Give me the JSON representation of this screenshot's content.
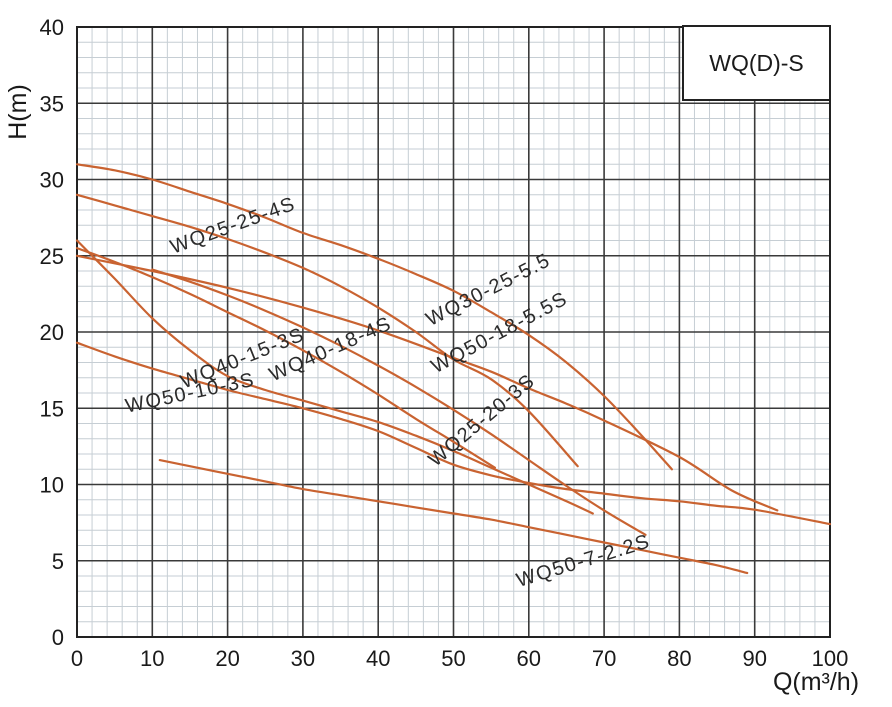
{
  "chart_data": {
    "type": "line",
    "legend_label": "WQ(D)-S",
    "xlabel": "Q(m³/h)",
    "ylabel": "H(m)",
    "xlim": [
      0,
      100
    ],
    "ylim": [
      0,
      40
    ],
    "x_ticks": [
      0,
      10,
      20,
      30,
      40,
      50,
      60,
      70,
      80,
      90,
      100
    ],
    "y_ticks": [
      0,
      5,
      10,
      15,
      20,
      25,
      30,
      35,
      40
    ],
    "x_minor_step": 2,
    "y_minor_step": 1,
    "grid": true,
    "legend_position": "top-right",
    "colors": {
      "curve": "#c96331",
      "grid_major": "#3a3a3a",
      "grid_minor": "#c6ced4",
      "border": "#222222",
      "text": "#1a1a1a"
    },
    "series": [
      {
        "name": "WQ30-25-5.5",
        "points": [
          [
            0,
            31
          ],
          [
            5,
            30.6
          ],
          [
            10,
            30
          ],
          [
            15,
            29.2
          ],
          [
            20,
            28.4
          ],
          [
            25,
            27.5
          ],
          [
            30,
            26.5
          ],
          [
            35,
            25.7
          ],
          [
            40,
            24.8
          ],
          [
            45,
            23.8
          ],
          [
            50,
            22.7
          ],
          [
            55,
            21.3
          ],
          [
            60,
            19.8
          ],
          [
            65,
            18
          ],
          [
            70,
            15.8
          ],
          [
            75,
            13.2
          ],
          [
            79,
            11
          ]
        ],
        "label_q": 55,
        "label_h": 22.4,
        "label_angle": -27
      },
      {
        "name": "WQ25-25-4S",
        "points": [
          [
            0,
            29
          ],
          [
            5,
            28.3
          ],
          [
            10,
            27.6
          ],
          [
            15,
            26.9
          ],
          [
            20,
            26.1
          ],
          [
            25,
            25.2
          ],
          [
            30,
            24.2
          ],
          [
            35,
            23
          ],
          [
            40,
            21.6
          ],
          [
            45,
            20
          ],
          [
            50,
            18.2
          ],
          [
            55,
            16.9
          ],
          [
            60,
            14.8
          ],
          [
            66.5,
            11.2
          ]
        ],
        "label_q": 21,
        "label_h": 26.6,
        "label_angle": -20
      },
      {
        "name": "WQ50-18-5.5S",
        "points": [
          [
            0,
            25
          ],
          [
            10,
            24
          ],
          [
            20,
            22.9
          ],
          [
            30,
            21.6
          ],
          [
            40,
            20.1
          ],
          [
            50,
            18.3
          ],
          [
            55,
            17.4
          ],
          [
            60,
            16.3
          ],
          [
            65,
            15.3
          ],
          [
            70,
            14.2
          ],
          [
            80,
            11.8
          ],
          [
            87,
            9.6
          ],
          [
            93,
            8.3
          ]
        ],
        "label_q": 56.5,
        "label_h": 19.6,
        "label_angle": -28
      },
      {
        "name": "WQ40-18-4S",
        "points": [
          [
            10,
            24.1
          ],
          [
            15,
            23.3
          ],
          [
            20,
            22.4
          ],
          [
            25,
            21.4
          ],
          [
            30,
            20.3
          ],
          [
            35,
            19.1
          ],
          [
            40,
            17.8
          ],
          [
            45,
            16.4
          ],
          [
            50,
            14.9
          ],
          [
            55,
            13.3
          ],
          [
            60,
            11.6
          ],
          [
            65,
            9.9
          ],
          [
            70,
            8.3
          ],
          [
            75.5,
            6.7
          ]
        ],
        "label_q": 34,
        "label_h": 18.5,
        "label_angle": -24
      },
      {
        "name": "WQ25-20-3S",
        "points": [
          [
            0,
            25.5
          ],
          [
            5,
            24.6
          ],
          [
            10,
            23.6
          ],
          [
            15,
            22.5
          ],
          [
            20,
            21.3
          ],
          [
            25,
            20.1
          ],
          [
            30,
            18.8
          ],
          [
            35,
            17.4
          ],
          [
            40,
            15.9
          ],
          [
            45,
            14.3
          ],
          [
            50,
            12.8
          ],
          [
            55.5,
            11.1
          ]
        ],
        "label_q": 54.3,
        "label_h": 13.9,
        "label_angle": -40
      },
      {
        "name": "WQ40-15-3S",
        "points": [
          [
            0,
            26
          ],
          [
            5,
            23.5
          ],
          [
            10,
            20.9
          ],
          [
            15,
            18.8
          ],
          [
            20,
            17.1
          ],
          [
            25,
            16.2
          ],
          [
            30,
            15.5
          ],
          [
            35,
            14.8
          ],
          [
            40,
            14.1
          ],
          [
            45,
            13.2
          ],
          [
            50,
            12.2
          ],
          [
            55,
            11.1
          ],
          [
            60,
            10
          ],
          [
            65,
            8.9
          ],
          [
            68.5,
            8.1
          ]
        ],
        "label_q": 22.3,
        "label_h": 17.9,
        "label_angle": -22
      },
      {
        "name": "WQ50-10-3S",
        "points": [
          [
            0,
            19.3
          ],
          [
            5,
            18.4
          ],
          [
            10,
            17.6
          ],
          [
            15,
            16.9
          ],
          [
            20,
            16.2
          ],
          [
            25,
            15.6
          ],
          [
            30,
            15
          ],
          [
            35,
            14.3
          ],
          [
            40,
            13.5
          ],
          [
            45,
            12.4
          ],
          [
            50,
            11.3
          ],
          [
            55,
            10.6
          ],
          [
            60,
            10.1
          ],
          [
            65,
            9.7
          ],
          [
            70,
            9.4
          ],
          [
            75,
            9.1
          ],
          [
            80,
            8.9
          ],
          [
            85,
            8.6
          ],
          [
            90,
            8.35
          ],
          [
            100,
            7.4
          ]
        ],
        "label_q": 15.2,
        "label_h": 15.6,
        "label_angle": -12
      },
      {
        "name": "WQ50-7-2.2S",
        "points": [
          [
            11,
            11.6
          ],
          [
            15,
            11.2
          ],
          [
            20,
            10.7
          ],
          [
            25,
            10.2
          ],
          [
            30,
            9.7
          ],
          [
            35,
            9.3
          ],
          [
            40,
            8.9
          ],
          [
            45,
            8.5
          ],
          [
            50,
            8.1
          ],
          [
            55,
            7.7
          ],
          [
            60,
            7.2
          ],
          [
            65,
            6.7
          ],
          [
            70,
            6.2
          ],
          [
            75,
            5.7
          ],
          [
            80,
            5.2
          ],
          [
            85,
            4.7
          ],
          [
            89,
            4.2
          ]
        ],
        "label_q": 67.5,
        "label_h": 4.6,
        "label_angle": -17
      }
    ]
  }
}
